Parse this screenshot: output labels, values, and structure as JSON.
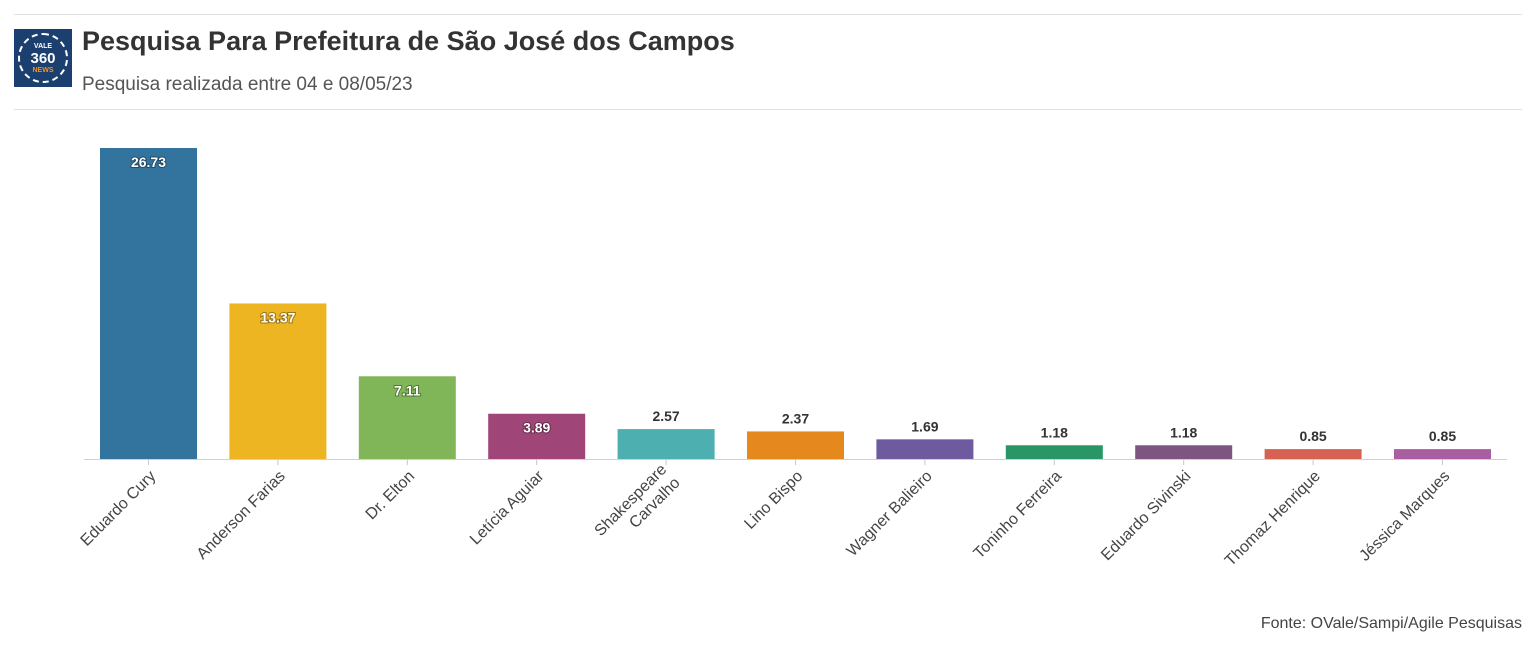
{
  "header": {
    "title": "Pesquisa Para Prefeitura de São José dos Campos",
    "subtitle": "Pesquisa realizada entre 04 e 08/05/23",
    "logo": {
      "top": "VALE",
      "middle": "360",
      "bottom": "NEWS"
    }
  },
  "footer": {
    "source": "Fonte: OVale/Sampi/Agile Pesquisas"
  },
  "chart_data": {
    "type": "bar",
    "title": "Pesquisa Para Prefeitura de São José dos Campos",
    "subtitle": "Pesquisa realizada entre 04 e 08/05/23",
    "xlabel": "",
    "ylabel": "",
    "ylim": [
      0,
      26.73
    ],
    "grid": false,
    "categories": [
      "Eduardo Cury",
      "Anderson Farias",
      "Dr. Elton",
      "Letícia Aguiar",
      "Shakespeare Carvalho",
      "Lino Bispo",
      "Wagner Balieiro",
      "Toninho Ferreira",
      "Eduardo Sivinski",
      "Thomaz Henrique",
      "Jéssica Marques"
    ],
    "category_lines": [
      [
        "Eduardo Cury"
      ],
      [
        "Anderson Farias"
      ],
      [
        "Dr. Elton"
      ],
      [
        "Letícia Aguiar"
      ],
      [
        "Shakespeare",
        "Carvalho"
      ],
      [
        "Lino Bispo"
      ],
      [
        "Wagner Balieiro"
      ],
      [
        "Toninho Ferreira"
      ],
      [
        "Eduardo Sivinski"
      ],
      [
        "Thomaz Henrique"
      ],
      [
        "Jéssica Marques"
      ]
    ],
    "values": [
      26.73,
      13.37,
      7.11,
      3.89,
      2.57,
      2.37,
      1.69,
      1.18,
      1.18,
      0.85,
      0.85
    ],
    "value_labels": [
      "26.73",
      "13.37",
      "7.11",
      "3.89",
      "2.57",
      "2.37",
      "1.69",
      "1.18",
      "1.18",
      "0.85",
      "0.85"
    ],
    "colors": [
      "#33749f",
      "#eeb522",
      "#81b658",
      "#9f4577",
      "#4dafb0",
      "#e5891f",
      "#6e5a9e",
      "#2a9668",
      "#7e5580",
      "#d66253",
      "#a95ea2"
    ]
  }
}
